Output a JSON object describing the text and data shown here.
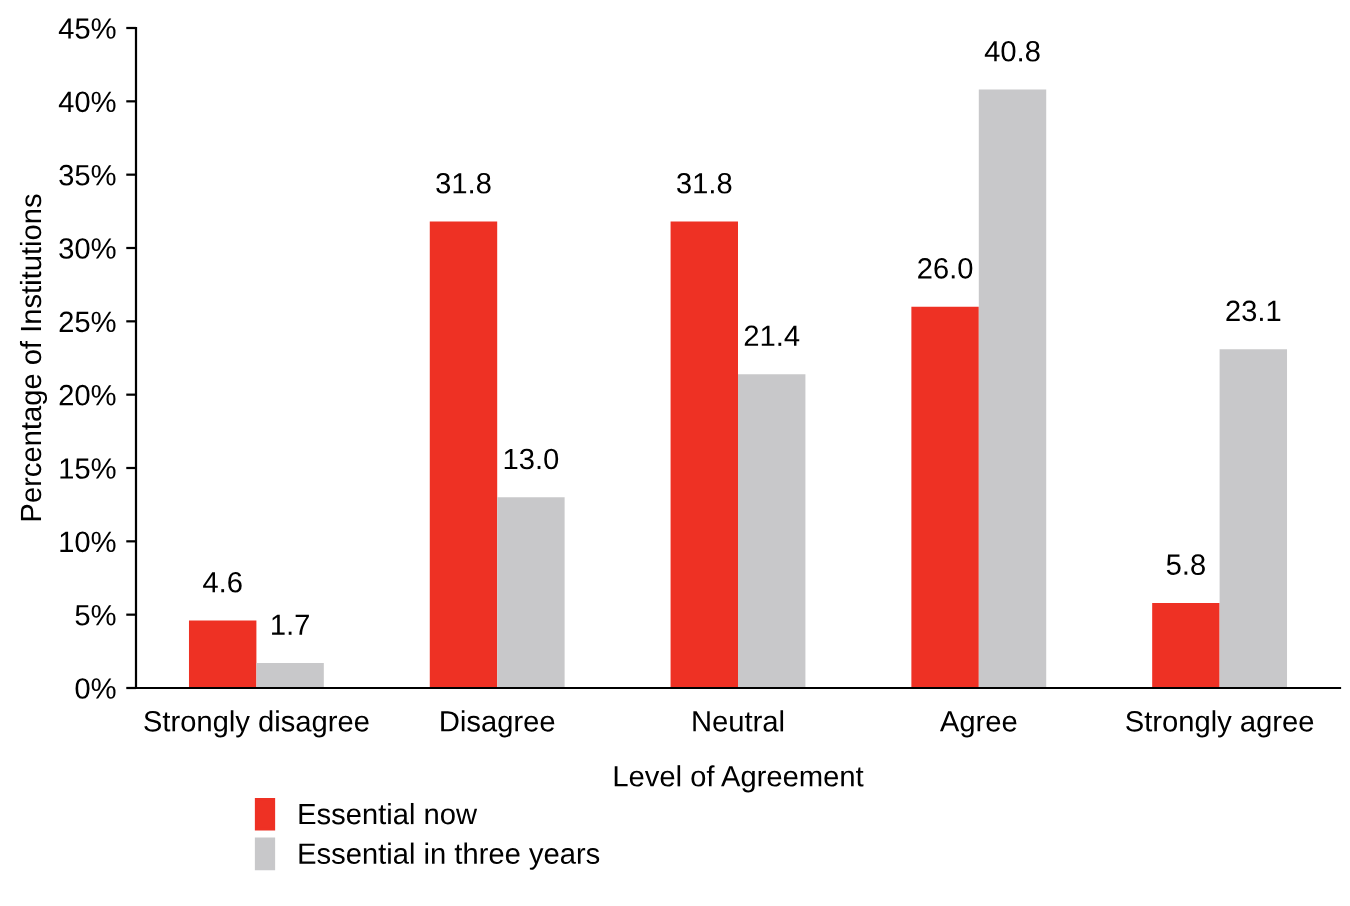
{
  "chart_data": {
    "type": "bar",
    "xlabel": "Level of Agreement",
    "ylabel": "Percentage of Institutions",
    "categories": [
      "Strongly disagree",
      "Disagree",
      "Neutral",
      "Agree",
      "Strongly agree"
    ],
    "series": [
      {
        "name": "Essential now",
        "color": "#ee3124",
        "values": [
          4.6,
          31.8,
          31.8,
          26.0,
          5.8
        ],
        "value_labels": [
          "4.6",
          "31.8",
          "31.8",
          "26.0",
          "5.8"
        ]
      },
      {
        "name": "Essential in three years",
        "color": "#c8c8ca",
        "values": [
          1.7,
          13.0,
          21.4,
          40.8,
          23.1
        ],
        "value_labels": [
          "1.7",
          "13.0",
          "21.4",
          "40.8",
          "23.1"
        ]
      }
    ],
    "ylim": [
      0,
      45
    ],
    "yticks": [
      {
        "value": 0,
        "label": "0%"
      },
      {
        "value": 5,
        "label": "5%"
      },
      {
        "value": 10,
        "label": "10%"
      },
      {
        "value": 15,
        "label": "15%"
      },
      {
        "value": 20,
        "label": "20%"
      },
      {
        "value": 25,
        "label": "25%"
      },
      {
        "value": 30,
        "label": "30%"
      },
      {
        "value": 35,
        "label": "35%"
      },
      {
        "value": 40,
        "label": "40%"
      },
      {
        "value": 45,
        "label": "45%"
      }
    ],
    "grid": false,
    "legend": "bottom"
  }
}
